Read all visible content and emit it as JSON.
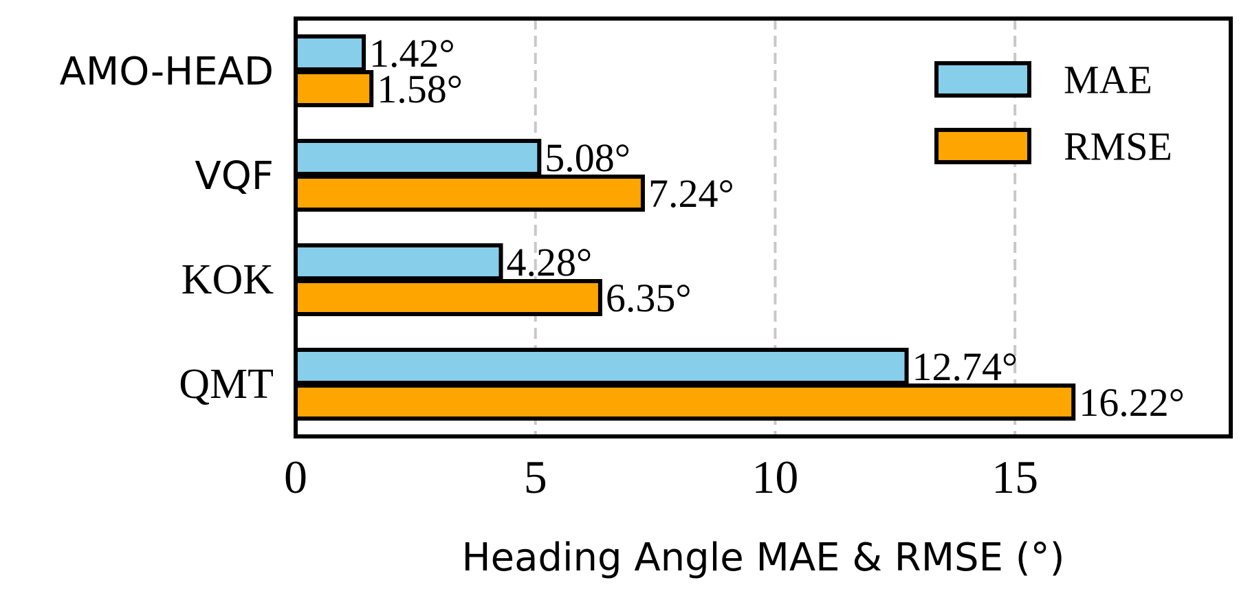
{
  "chart_data": {
    "type": "bar",
    "orientation": "horizontal",
    "categories": [
      "AMO-HEAD",
      "VQF",
      "KOK",
      "QMT"
    ],
    "category_fonts": [
      "sans",
      "sans",
      "serif",
      "serif"
    ],
    "series": [
      {
        "name": "MAE",
        "color": "#87CEEB",
        "values": [
          1.42,
          5.08,
          4.28,
          12.74
        ],
        "labels": [
          "1.42°",
          "5.08°",
          "4.28°",
          "12.74°"
        ]
      },
      {
        "name": "RMSE",
        "color": "#FFA500",
        "values": [
          1.58,
          7.24,
          6.35,
          16.22
        ],
        "labels": [
          "1.58°",
          "7.24°",
          "6.35°",
          "16.22°"
        ]
      }
    ],
    "xlabel": "Heading Angle MAE & RMSE (°)",
    "xlim": [
      0,
      19.5
    ],
    "xticks": [
      0,
      5,
      10,
      15
    ],
    "xtick_labels": [
      "0",
      "5",
      "10",
      "15"
    ],
    "grid": "vertical dashed",
    "grid_color": "#c8c8c8",
    "edge_color": "#000000",
    "legend_position": "top-right"
  }
}
